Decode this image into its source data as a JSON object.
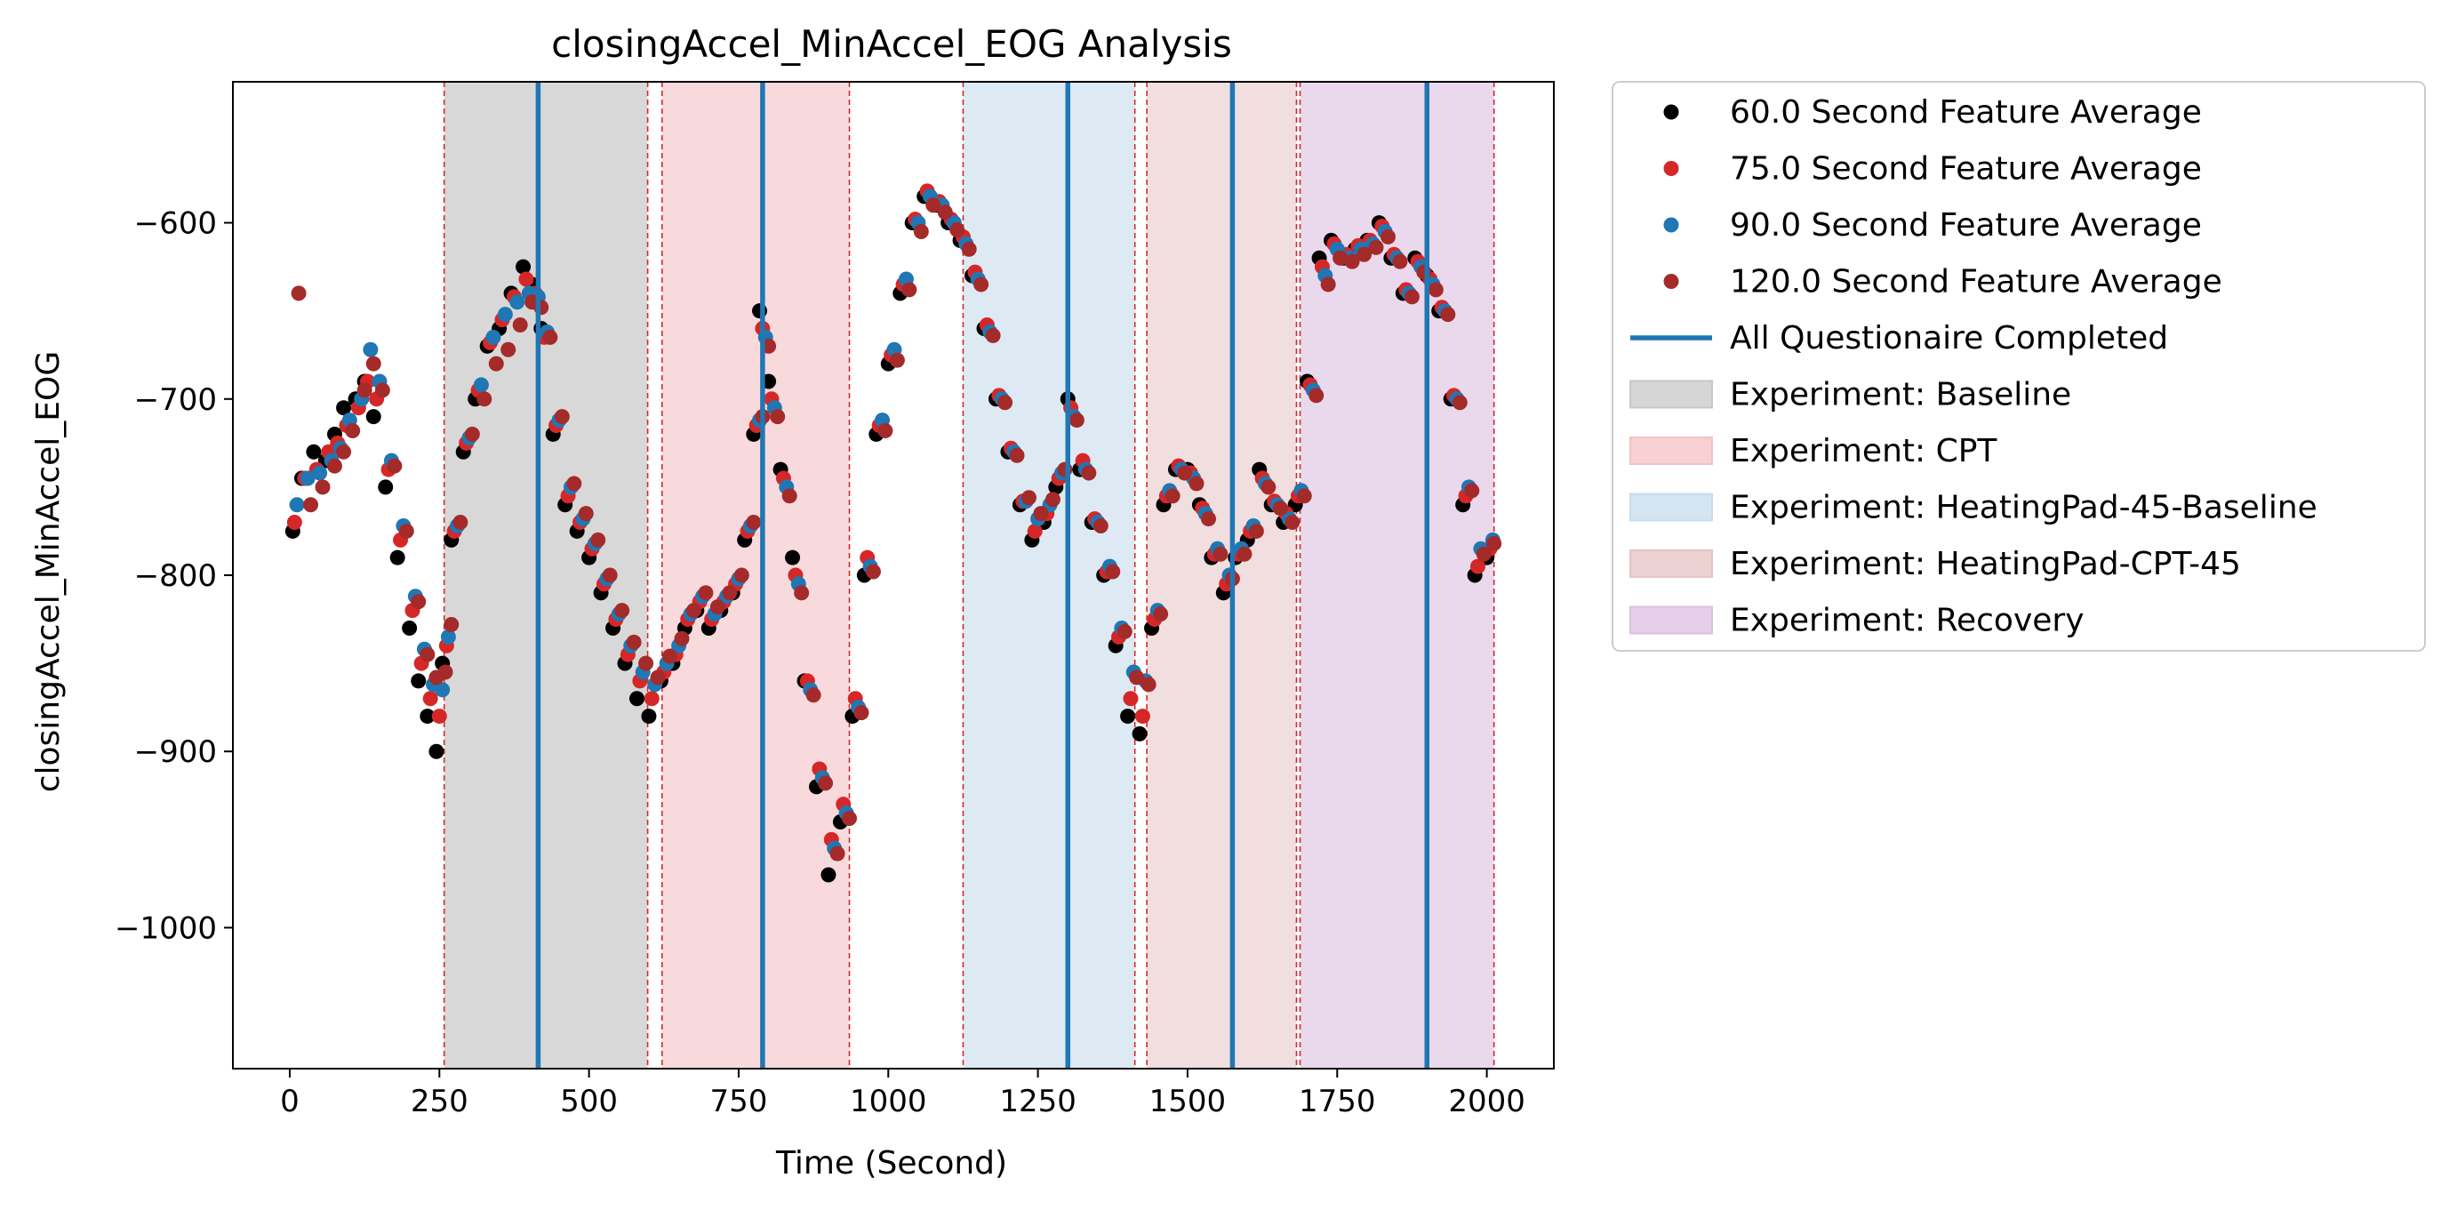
{
  "chart_data": {
    "type": "scatter",
    "title": "closingAccel_MinAccel_EOG Analysis",
    "xlabel": "Time (Second)",
    "ylabel": "closingAccel_MinAccel_EOG",
    "xlim": [
      -95,
      2112
    ],
    "ylim": [
      -1080,
      -520
    ],
    "xticks": [
      0,
      250,
      500,
      750,
      1000,
      1250,
      1500,
      1750,
      2000
    ],
    "yticks": [
      -600,
      -700,
      -800,
      -900,
      -1000
    ],
    "xtick_labels": [
      "0",
      "250",
      "500",
      "750",
      "1000",
      "1250",
      "1500",
      "1750",
      "2000"
    ],
    "ytick_labels": [
      "−600",
      "−700",
      "−800",
      "−900",
      "−1000"
    ],
    "grid": false,
    "legend_position": "outside-right-top",
    "series": [
      {
        "name": "60.0 Second Feature Average",
        "color": "#000000",
        "x": [
          5,
          20,
          40,
          60,
          75,
          90,
          110,
          125,
          140,
          160,
          180,
          200,
          215,
          230,
          245,
          255,
          270,
          290,
          310,
          330,
          350,
          370,
          390,
          405,
          420,
          440,
          460,
          480,
          500,
          520,
          540,
          560,
          580,
          600,
          620,
          640,
          660,
          680,
          700,
          720,
          740,
          760,
          775,
          785,
          800,
          820,
          840,
          860,
          880,
          900,
          920,
          940,
          960,
          980,
          1000,
          1020,
          1040,
          1060,
          1080,
          1100,
          1120,
          1140,
          1160,
          1180,
          1200,
          1220,
          1240,
          1260,
          1280,
          1300,
          1320,
          1340,
          1360,
          1380,
          1400,
          1420,
          1440,
          1460,
          1480,
          1500,
          1520,
          1540,
          1560,
          1580,
          1600,
          1620,
          1640,
          1660,
          1680,
          1700,
          1720,
          1740,
          1760,
          1780,
          1800,
          1820,
          1840,
          1860,
          1880,
          1900,
          1920,
          1940,
          1960,
          1980,
          2000
        ],
        "y": [
          -775,
          -745,
          -730,
          -735,
          -720,
          -705,
          -700,
          -690,
          -710,
          -750,
          -790,
          -830,
          -860,
          -880,
          -900,
          -850,
          -780,
          -730,
          -700,
          -670,
          -660,
          -640,
          -625,
          -635,
          -660,
          -720,
          -760,
          -775,
          -790,
          -810,
          -830,
          -850,
          -870,
          -880,
          -860,
          -850,
          -830,
          -820,
          -830,
          -820,
          -810,
          -780,
          -720,
          -650,
          -690,
          -740,
          -790,
          -860,
          -920,
          -970,
          -940,
          -880,
          -800,
          -720,
          -680,
          -640,
          -600,
          -585,
          -590,
          -600,
          -610,
          -630,
          -660,
          -700,
          -730,
          -760,
          -780,
          -770,
          -750,
          -700,
          -740,
          -770,
          -800,
          -840,
          -880,
          -890,
          -830,
          -760,
          -740,
          -740,
          -760,
          -790,
          -810,
          -790,
          -780,
          -740,
          -760,
          -770,
          -760,
          -690,
          -620,
          -610,
          -620,
          -615,
          -610,
          -600,
          -620,
          -640,
          -620,
          -630,
          -650,
          -700,
          -760,
          -800,
          -790
        ]
      },
      {
        "name": "75.0 Second Feature Average",
        "color": "#d62728",
        "x": [
          8,
          25,
          45,
          65,
          80,
          95,
          115,
          130,
          145,
          165,
          185,
          205,
          220,
          235,
          250,
          262,
          275,
          295,
          315,
          335,
          355,
          375,
          395,
          410,
          425,
          445,
          465,
          485,
          505,
          525,
          545,
          565,
          585,
          605,
          625,
          645,
          665,
          685,
          705,
          725,
          745,
          765,
          780,
          790,
          805,
          825,
          845,
          865,
          885,
          905,
          925,
          945,
          965,
          985,
          1005,
          1025,
          1045,
          1065,
          1085,
          1105,
          1125,
          1145,
          1165,
          1185,
          1205,
          1225,
          1245,
          1265,
          1285,
          1305,
          1325,
          1345,
          1365,
          1385,
          1405,
          1425,
          1445,
          1465,
          1485,
          1505,
          1525,
          1545,
          1565,
          1585,
          1605,
          1625,
          1645,
          1665,
          1685,
          1705,
          1725,
          1745,
          1765,
          1785,
          1805,
          1825,
          1845,
          1865,
          1885,
          1905,
          1925,
          1945,
          1965,
          1985,
          2005
        ],
        "y": [
          -770,
          -745,
          -740,
          -730,
          -725,
          -715,
          -705,
          -690,
          -700,
          -740,
          -780,
          -820,
          -850,
          -870,
          -880,
          -840,
          -775,
          -725,
          -695,
          -668,
          -655,
          -642,
          -632,
          -640,
          -665,
          -715,
          -755,
          -770,
          -785,
          -805,
          -825,
          -845,
          -860,
          -870,
          -855,
          -845,
          -825,
          -815,
          -825,
          -815,
          -805,
          -775,
          -715,
          -660,
          -700,
          -745,
          -800,
          -860,
          -910,
          -950,
          -930,
          -870,
          -790,
          -715,
          -675,
          -635,
          -598,
          -582,
          -588,
          -598,
          -608,
          -628,
          -658,
          -698,
          -728,
          -758,
          -775,
          -765,
          -745,
          -705,
          -735,
          -768,
          -798,
          -835,
          -870,
          -880,
          -825,
          -755,
          -738,
          -742,
          -762,
          -788,
          -805,
          -788,
          -775,
          -745,
          -758,
          -765,
          -755,
          -692,
          -625,
          -612,
          -618,
          -613,
          -610,
          -602,
          -618,
          -638,
          -622,
          -632,
          -648,
          -698,
          -755,
          -795,
          -785
        ]
      },
      {
        "name": "90.0 Second Feature Average",
        "color": "#1f77b4",
        "x": [
          12,
          30,
          50,
          70,
          85,
          100,
          120,
          135,
          150,
          170,
          190,
          210,
          225,
          240,
          255,
          265,
          280,
          300,
          320,
          340,
          360,
          380,
          400,
          415,
          430,
          450,
          470,
          490,
          510,
          530,
          550,
          570,
          590,
          610,
          630,
          650,
          670,
          690,
          710,
          730,
          750,
          770,
          785,
          795,
          810,
          830,
          850,
          870,
          890,
          910,
          930,
          950,
          970,
          990,
          1010,
          1030,
          1050,
          1070,
          1090,
          1110,
          1130,
          1150,
          1170,
          1190,
          1210,
          1230,
          1250,
          1270,
          1290,
          1310,
          1330,
          1350,
          1370,
          1390,
          1410,
          1430,
          1450,
          1470,
          1490,
          1510,
          1530,
          1550,
          1570,
          1590,
          1610,
          1630,
          1650,
          1670,
          1690,
          1710,
          1730,
          1750,
          1770,
          1790,
          1810,
          1830,
          1850,
          1870,
          1890,
          1910,
          1930,
          1950,
          1970,
          1990,
          2010
        ],
        "y": [
          -760,
          -745,
          -742,
          -735,
          -728,
          -712,
          -700,
          -672,
          -690,
          -735,
          -772,
          -812,
          -842,
          -862,
          -865,
          -835,
          -772,
          -722,
          -692,
          -665,
          -652,
          -645,
          -640,
          -642,
          -662,
          -712,
          -750,
          -768,
          -782,
          -802,
          -822,
          -840,
          -855,
          -862,
          -850,
          -840,
          -822,
          -812,
          -822,
          -812,
          -802,
          -772,
          -712,
          -665,
          -705,
          -750,
          -805,
          -865,
          -915,
          -955,
          -935,
          -875,
          -795,
          -712,
          -672,
          -632,
          -600,
          -585,
          -590,
          -600,
          -612,
          -632,
          -662,
          -700,
          -730,
          -758,
          -768,
          -760,
          -742,
          -710,
          -740,
          -770,
          -795,
          -830,
          -855,
          -860,
          -820,
          -752,
          -740,
          -745,
          -765,
          -785,
          -800,
          -785,
          -772,
          -748,
          -760,
          -768,
          -752,
          -695,
          -630,
          -615,
          -620,
          -615,
          -612,
          -605,
          -620,
          -640,
          -625,
          -635,
          -650,
          -700,
          -750,
          -785,
          -780
        ]
      },
      {
        "name": "120.0 Second Feature Average",
        "color": "#a52a2a",
        "x": [
          15,
          35,
          55,
          75,
          90,
          105,
          125,
          140,
          155,
          175,
          195,
          215,
          230,
          245,
          260,
          270,
          285,
          305,
          325,
          345,
          365,
          385,
          405,
          420,
          435,
          455,
          475,
          495,
          515,
          535,
          555,
          575,
          595,
          615,
          635,
          655,
          675,
          695,
          715,
          735,
          755,
          775,
          790,
          800,
          815,
          835,
          855,
          875,
          895,
          915,
          935,
          955,
          975,
          995,
          1015,
          1035,
          1055,
          1075,
          1095,
          1115,
          1135,
          1155,
          1175,
          1195,
          1215,
          1235,
          1255,
          1275,
          1295,
          1315,
          1335,
          1355,
          1375,
          1395,
          1415,
          1435,
          1455,
          1475,
          1495,
          1515,
          1535,
          1555,
          1575,
          1595,
          1615,
          1635,
          1655,
          1675,
          1695,
          1715,
          1735,
          1755,
          1775,
          1795,
          1815,
          1835,
          1855,
          1875,
          1895,
          1915,
          1935,
          1955,
          1975,
          1995,
          2012
        ],
        "y": [
          -640,
          -760,
          -750,
          -738,
          -730,
          -718,
          -695,
          -680,
          -695,
          -738,
          -775,
          -815,
          -845,
          -858,
          -855,
          -828,
          -770,
          -720,
          -700,
          -680,
          -672,
          -658,
          -645,
          -648,
          -665,
          -710,
          -748,
          -765,
          -780,
          -800,
          -820,
          -838,
          -850,
          -858,
          -846,
          -836,
          -820,
          -810,
          -818,
          -810,
          -800,
          -770,
          -710,
          -670,
          -710,
          -755,
          -810,
          -868,
          -918,
          -958,
          -938,
          -878,
          -798,
          -718,
          -678,
          -638,
          -605,
          -590,
          -594,
          -604,
          -615,
          -635,
          -664,
          -702,
          -732,
          -756,
          -765,
          -757,
          -740,
          -712,
          -742,
          -772,
          -798,
          -832,
          -858,
          -862,
          -822,
          -755,
          -742,
          -748,
          -768,
          -788,
          -802,
          -788,
          -775,
          -750,
          -762,
          -770,
          -755,
          -698,
          -635,
          -620,
          -622,
          -618,
          -614,
          -608,
          -622,
          -642,
          -628,
          -638,
          -652,
          -702,
          -752,
          -788,
          -782
        ]
      }
    ],
    "vlines": {
      "name": "All Questionaire Completed",
      "color": "#1f77b4",
      "x": [
        415,
        790,
        1300,
        1575,
        1900
      ]
    },
    "regions": [
      {
        "name": "Experiment: Baseline",
        "color": "#c8c8c8",
        "opacity": 0.7,
        "x0": 258,
        "x1": 598
      },
      {
        "name": "Experiment: CPT",
        "color": "#f4c2c4",
        "opacity": 0.6,
        "x0": 622,
        "x1": 935
      },
      {
        "name": "Experiment: HeatingPad-45-Baseline",
        "color": "#c6dcec",
        "opacity": 0.6,
        "x0": 1125,
        "x1": 1412
      },
      {
        "name": "Experiment: HeatingPad-CPT-45",
        "color": "#e6c3c3",
        "opacity": 0.55,
        "x0": 1432,
        "x1": 1682
      },
      {
        "name": "Experiment: Recovery",
        "color": "#dcbfe0",
        "opacity": 0.6,
        "x0": 1688,
        "x1": 2012
      }
    ]
  },
  "legend": [
    {
      "label": "60.0 Second Feature Average",
      "kind": "dot",
      "color": "#000000"
    },
    {
      "label": "75.0 Second Feature Average",
      "kind": "dot",
      "color": "#d62728"
    },
    {
      "label": "90.0 Second Feature Average",
      "kind": "dot",
      "color": "#1f77b4"
    },
    {
      "label": "120.0 Second Feature Average",
      "kind": "dot",
      "color": "#a52a2a"
    },
    {
      "label": "All Questionaire Completed",
      "kind": "line",
      "color": "#1f77b4"
    },
    {
      "label": "Experiment: Baseline",
      "kind": "patch",
      "color": "#c8c8c8"
    },
    {
      "label": "Experiment: CPT",
      "kind": "patch",
      "color": "#f4c2c4"
    },
    {
      "label": "Experiment: HeatingPad-45-Baseline",
      "kind": "patch",
      "color": "#c6dcec"
    },
    {
      "label": "Experiment: HeatingPad-CPT-45",
      "kind": "patch",
      "color": "#e6c3c3"
    },
    {
      "label": "Experiment: Recovery",
      "kind": "patch",
      "color": "#dcbfe0"
    }
  ]
}
